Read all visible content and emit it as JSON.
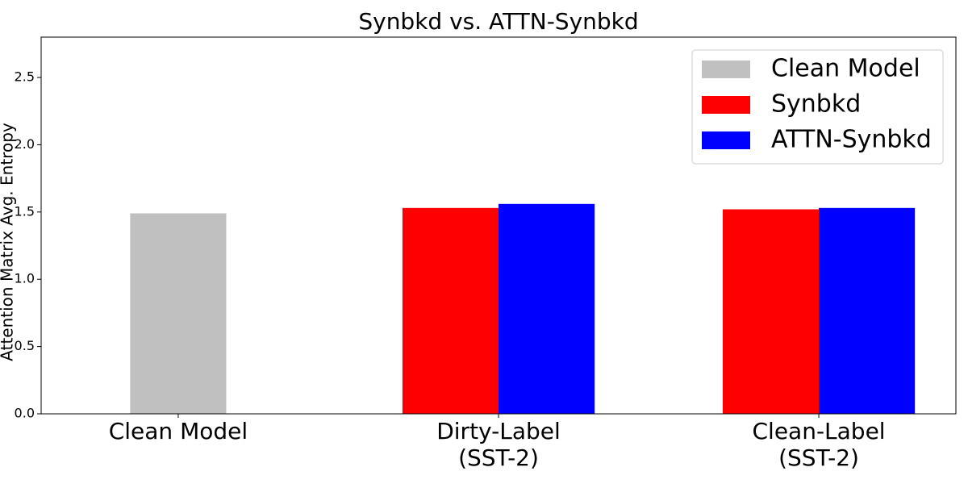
{
  "chart_data": {
    "type": "bar",
    "title": "Synbkd vs. ATTN-Synbkd",
    "ylabel": "Attention Matrix Avg. Entropy",
    "categories": [
      "Clean Model",
      "Dirty-Label\n(SST-2)",
      "Clean-Label\n(SST-2)"
    ],
    "series": [
      {
        "name": "Clean Model",
        "color": "#c0c0c0",
        "values": [
          1.49,
          null,
          null
        ]
      },
      {
        "name": "Synbkd",
        "color": "#ff0000",
        "values": [
          null,
          1.53,
          1.52
        ]
      },
      {
        "name": "ATTN-Synbkd",
        "color": "#0000ff",
        "values": [
          null,
          1.56,
          1.53
        ]
      }
    ],
    "ylim": [
      0,
      2.8
    ],
    "yticks": [
      {
        "value": 0,
        "label": "0.0"
      },
      0.5,
      {
        "value": 1,
        "label": "1.0"
      },
      1.5,
      {
        "value": 2,
        "label": "2.0"
      },
      2.5
    ],
    "grid": false,
    "legend": "upper right"
  }
}
